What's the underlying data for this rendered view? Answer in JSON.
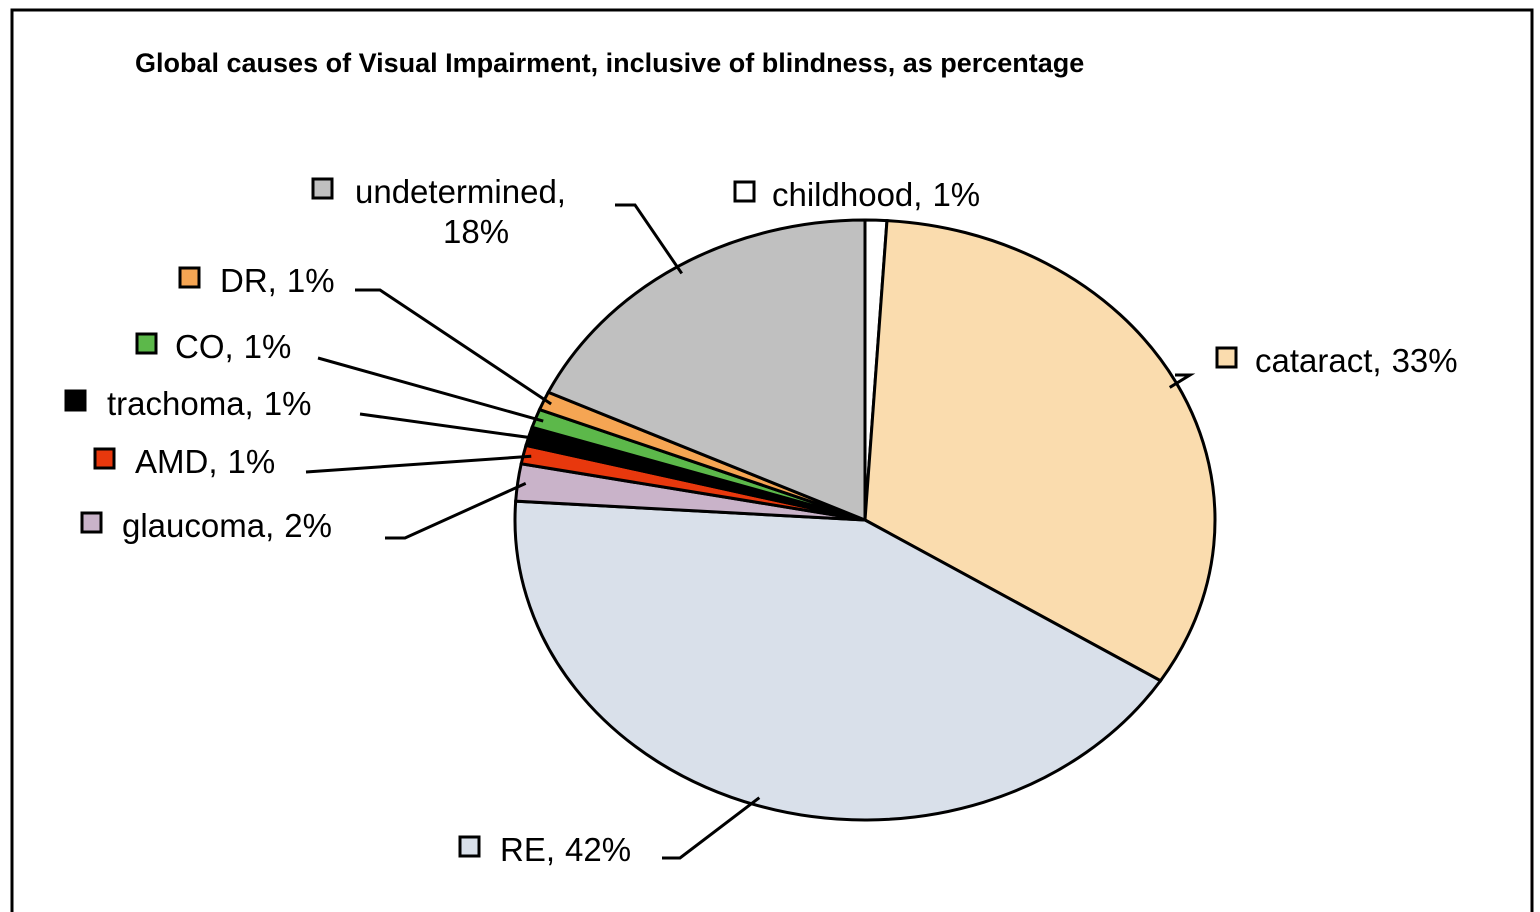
{
  "chart_data": {
    "type": "pie",
    "title": "Global causes of Visual Impairment, inclusive of blindness, as percentage",
    "categories": [
      "childhood,",
      "cataract,",
      "RE,",
      "glaucoma,",
      "AMD,",
      "trachoma,",
      "CO,",
      "DR,",
      "undetermined,"
    ],
    "values": [
      1,
      33,
      42,
      2,
      1,
      1,
      1,
      1,
      18
    ],
    "value_labels": [
      "1%",
      "33%",
      "42%",
      "2%",
      "1%",
      "1%",
      "1%",
      "1%",
      "18%"
    ],
    "colors": [
      "#ffffff",
      "#fadcae",
      "#d9e0ea",
      "#c9b3c9",
      "#e8380d",
      "#000000",
      "#5cb84a",
      "#f5a553",
      "#c0c0c0"
    ]
  }
}
